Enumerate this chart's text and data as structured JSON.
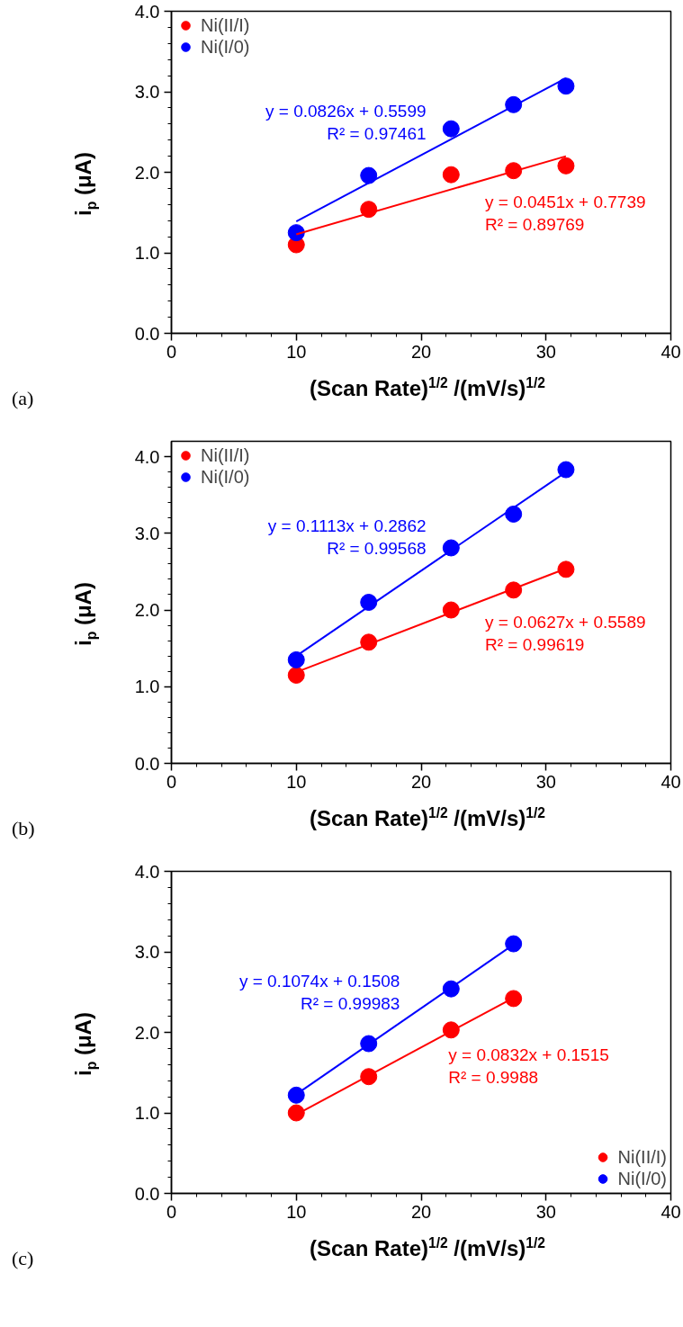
{
  "chart_data": [
    {
      "type": "scatter",
      "xlabel": "(Scan Rate)$^{1/2}$ /(mV/s)$^{1/2}$",
      "ylabel": "i$_{p}$ (μA)",
      "annotations": [
        "(a)"
      ],
      "marker": "circle",
      "legend": "top left",
      "grid": false,
      "xlim": [
        0,
        40
      ],
      "ylim": [
        0,
        4.0
      ],
      "xticks": [
        0,
        {
          "value": 2,
          "label": null
        },
        {
          "value": 4,
          "label": null
        },
        {
          "value": 6,
          "label": null
        },
        {
          "value": 8,
          "label": null
        },
        10,
        {
          "value": 12,
          "label": null
        },
        {
          "value": 14,
          "label": null
        },
        {
          "value": 16,
          "label": null
        },
        {
          "value": 18,
          "label": null
        },
        20,
        {
          "value": 22,
          "label": null
        },
        {
          "value": 24,
          "label": null
        },
        {
          "value": 26,
          "label": null
        },
        {
          "value": 28,
          "label": null
        },
        30,
        {
          "value": 32,
          "label": null
        },
        {
          "value": 34,
          "label": null
        },
        {
          "value": 36,
          "label": null
        },
        {
          "value": 38,
          "label": null
        },
        40
      ],
      "yticks": [
        {
          "value": 0,
          "label": "0.0"
        },
        {
          "value": 0.2,
          "label": null
        },
        {
          "value": 0.4,
          "label": null
        },
        {
          "value": 0.6,
          "label": null
        },
        {
          "value": 0.8,
          "label": null
        },
        {
          "value": 1,
          "label": "1.0"
        },
        {
          "value": 1.2,
          "label": null
        },
        {
          "value": 1.4,
          "label": null
        },
        {
          "value": 1.6,
          "label": null
        },
        {
          "value": 1.8,
          "label": null
        },
        {
          "value": 2,
          "label": "2.0"
        },
        {
          "value": 2.2,
          "label": null
        },
        {
          "value": 2.4,
          "label": null
        },
        {
          "value": 2.6,
          "label": null
        },
        {
          "value": 2.8,
          "label": null
        },
        {
          "value": 3,
          "label": "3.0"
        },
        {
          "value": 3.2,
          "label": null
        },
        {
          "value": 3.4,
          "label": null
        },
        {
          "value": 3.6,
          "label": null
        },
        {
          "value": 3.8,
          "label": null
        },
        {
          "value": 4,
          "label": "4.0"
        }
      ],
      "x": [
        10,
        15.8,
        22.4,
        27.4,
        31.6
      ],
      "series": [
        {
          "name": "Ni(II/I)",
          "color": "#ff0000",
          "values": [
            1.1,
            1.54,
            1.97,
            2.02,
            2.08
          ]
        },
        {
          "name": "Ni(I/0)",
          "color": "#0000ff",
          "values": [
            1.25,
            1.96,
            2.54,
            2.84,
            3.07
          ]
        },
        {
          "type": "line",
          "marker": "none",
          "name": "y = 0.0826x + 0.5599\nR² = 0.97461",
          "color": "#0000ff",
          "x": [
            10,
            31.6
          ],
          "values": [
            1.39,
            3.17
          ]
        },
        {
          "type": "line",
          "marker": "none",
          "name": "y = 0.0451x + 0.7739\nR² = 0.89769",
          "color": "#ff0000",
          "x": [
            10,
            31.6
          ],
          "values": [
            1.23,
            2.2
          ]
        }
      ]
    },
    {
      "type": "scatter",
      "xlabel": "(Scan Rate)$^{1/2}$ /(mV/s)$^{1/2}$",
      "ylabel": "i$_{p}$ (μA)",
      "annotations": [
        "(b)"
      ],
      "marker": "circle",
      "legend": "top left",
      "grid": false,
      "xlim": [
        0,
        40
      ],
      "ylim": [
        0,
        4.2
      ],
      "xticks": [
        0,
        {
          "value": 2,
          "label": null
        },
        {
          "value": 4,
          "label": null
        },
        {
          "value": 6,
          "label": null
        },
        {
          "value": 8,
          "label": null
        },
        10,
        {
          "value": 12,
          "label": null
        },
        {
          "value": 14,
          "label": null
        },
        {
          "value": 16,
          "label": null
        },
        {
          "value": 18,
          "label": null
        },
        20,
        {
          "value": 22,
          "label": null
        },
        {
          "value": 24,
          "label": null
        },
        {
          "value": 26,
          "label": null
        },
        {
          "value": 28,
          "label": null
        },
        30,
        {
          "value": 32,
          "label": null
        },
        {
          "value": 34,
          "label": null
        },
        {
          "value": 36,
          "label": null
        },
        {
          "value": 38,
          "label": null
        },
        40
      ],
      "yticks": [
        {
          "value": 0,
          "label": "0.0"
        },
        {
          "value": 0.2,
          "label": null
        },
        {
          "value": 0.4,
          "label": null
        },
        {
          "value": 0.6,
          "label": null
        },
        {
          "value": 0.8,
          "label": null
        },
        {
          "value": 1,
          "label": "1.0"
        },
        {
          "value": 1.2,
          "label": null
        },
        {
          "value": 1.4,
          "label": null
        },
        {
          "value": 1.6,
          "label": null
        },
        {
          "value": 1.8,
          "label": null
        },
        {
          "value": 2,
          "label": "2.0"
        },
        {
          "value": 2.2,
          "label": null
        },
        {
          "value": 2.4,
          "label": null
        },
        {
          "value": 2.6,
          "label": null
        },
        {
          "value": 2.8,
          "label": null
        },
        {
          "value": 3,
          "label": "3.0"
        },
        {
          "value": 3.2,
          "label": null
        },
        {
          "value": 3.4,
          "label": null
        },
        {
          "value": 3.6,
          "label": null
        },
        {
          "value": 3.8,
          "label": null
        },
        {
          "value": 4,
          "label": "4.0"
        }
      ],
      "x": [
        10,
        15.8,
        22.4,
        27.4,
        31.6
      ],
      "series": [
        {
          "name": "Ni(II/I)",
          "color": "#ff0000",
          "values": [
            1.15,
            1.58,
            2.0,
            2.26,
            2.53
          ]
        },
        {
          "name": "Ni(I/0)",
          "color": "#0000ff",
          "values": [
            1.35,
            2.1,
            2.81,
            3.25,
            3.83
          ]
        },
        {
          "type": "line",
          "marker": "none",
          "name": "y = 0.1113x + 0.2862\nR² = 0.99568",
          "color": "#0000ff",
          "x": [
            10,
            31.6
          ],
          "values": [
            1.4,
            3.8
          ]
        },
        {
          "type": "line",
          "marker": "none",
          "name": "y = 0.0627x + 0.5589\nR² = 0.99619",
          "color": "#ff0000",
          "x": [
            10,
            31.6
          ],
          "values": [
            1.19,
            2.54
          ]
        }
      ]
    },
    {
      "type": "scatter",
      "xlabel": "(Scan Rate)$^{1/2}$ /(mV/s)$^{1/2}$",
      "ylabel": "i$_{p}$ (μA)",
      "annotations": [
        "(c)"
      ],
      "marker": "circle",
      "legend": "bottom right",
      "grid": false,
      "xlim": [
        0,
        40
      ],
      "ylim": [
        0,
        4.0
      ],
      "xticks": [
        0,
        {
          "value": 2,
          "label": null
        },
        {
          "value": 4,
          "label": null
        },
        {
          "value": 6,
          "label": null
        },
        {
          "value": 8,
          "label": null
        },
        10,
        {
          "value": 12,
          "label": null
        },
        {
          "value": 14,
          "label": null
        },
        {
          "value": 16,
          "label": null
        },
        {
          "value": 18,
          "label": null
        },
        20,
        {
          "value": 22,
          "label": null
        },
        {
          "value": 24,
          "label": null
        },
        {
          "value": 26,
          "label": null
        },
        {
          "value": 28,
          "label": null
        },
        30,
        {
          "value": 32,
          "label": null
        },
        {
          "value": 34,
          "label": null
        },
        {
          "value": 36,
          "label": null
        },
        {
          "value": 38,
          "label": null
        },
        40
      ],
      "yticks": [
        {
          "value": 0,
          "label": "0.0"
        },
        {
          "value": 0.2,
          "label": null
        },
        {
          "value": 0.4,
          "label": null
        },
        {
          "value": 0.6,
          "label": null
        },
        {
          "value": 0.8,
          "label": null
        },
        {
          "value": 1,
          "label": "1.0"
        },
        {
          "value": 1.2,
          "label": null
        },
        {
          "value": 1.4,
          "label": null
        },
        {
          "value": 1.6,
          "label": null
        },
        {
          "value": 1.8,
          "label": null
        },
        {
          "value": 2,
          "label": "2.0"
        },
        {
          "value": 2.2,
          "label": null
        },
        {
          "value": 2.4,
          "label": null
        },
        {
          "value": 2.6,
          "label": null
        },
        {
          "value": 2.8,
          "label": null
        },
        {
          "value": 3,
          "label": "3.0"
        },
        {
          "value": 3.2,
          "label": null
        },
        {
          "value": 3.4,
          "label": null
        },
        {
          "value": 3.6,
          "label": null
        },
        {
          "value": 3.8,
          "label": null
        },
        {
          "value": 4,
          "label": "4.0"
        }
      ],
      "x": [
        10,
        15.8,
        22.4,
        27.4
      ],
      "series": [
        {
          "name": "Ni(II/I)",
          "color": "#ff0000",
          "values": [
            1.0,
            1.45,
            2.03,
            2.42
          ]
        },
        {
          "name": "Ni(I/0)",
          "color": "#0000ff",
          "values": [
            1.22,
            1.86,
            2.54,
            3.1
          ]
        },
        {
          "type": "line",
          "marker": "none",
          "name": "y = 0.1074x + 0.1508\nR² = 0.99983",
          "color": "#0000ff",
          "x": [
            10,
            27.4
          ],
          "values": [
            1.23,
            3.09
          ]
        },
        {
          "type": "line",
          "marker": "none",
          "name": "y = 0.0832x + 0.1515\nR² = 0.9988",
          "color": "#ff0000",
          "x": [
            10,
            27.4
          ],
          "values": [
            0.98,
            2.43
          ]
        }
      ]
    }
  ]
}
